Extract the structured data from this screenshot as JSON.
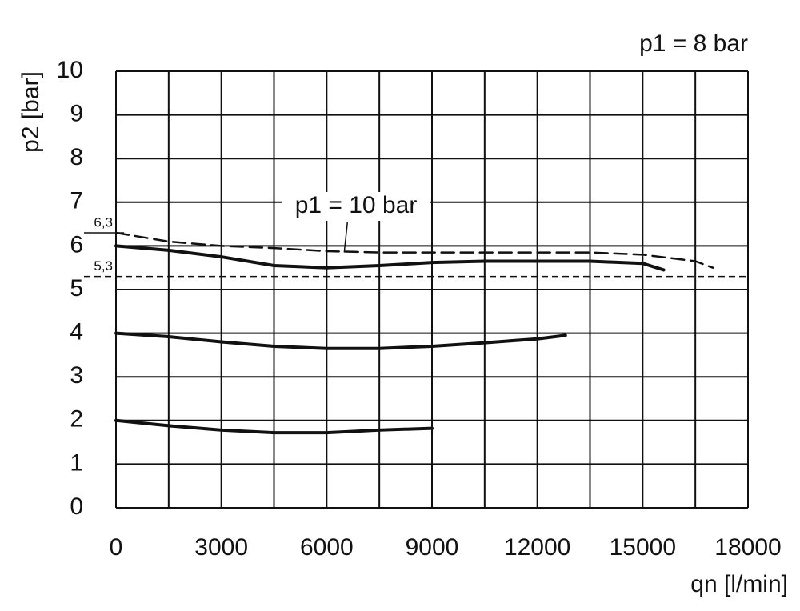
{
  "chart_data": {
    "type": "line",
    "annotation_top": "p1 = 8 bar",
    "annotation_curve": "p1 = 10 bar",
    "annotation_curve_point": [
      6500,
      5.85
    ],
    "xlabel": "qn [l/min]",
    "ylabel": "p2 [bar]",
    "xlim": [
      0,
      18000
    ],
    "ylim": [
      0,
      10
    ],
    "xticks": [
      0,
      3000,
      6000,
      9000,
      12000,
      15000,
      18000
    ],
    "x_grid_lines": [
      0,
      1500,
      3000,
      4500,
      6000,
      7500,
      9000,
      10500,
      12000,
      13500,
      15000,
      16500,
      18000
    ],
    "yticks": [
      0,
      1,
      2,
      3,
      4,
      5,
      6,
      7,
      8,
      9,
      10
    ],
    "grid": true,
    "reference_lines": [
      {
        "value": 5.3,
        "label": "5,3"
      },
      {
        "value": 6.3,
        "label": "6,3"
      }
    ],
    "series": [
      {
        "color": "#111111",
        "dashed": false,
        "x": [
          0,
          1500,
          3000,
          4500,
          6000,
          7500,
          9000,
          10500,
          12000,
          13500,
          15000,
          15600
        ],
        "values": [
          6.0,
          5.9,
          5.75,
          5.55,
          5.5,
          5.55,
          5.62,
          5.65,
          5.65,
          5.65,
          5.6,
          5.45
        ]
      },
      {
        "color": "#111111",
        "dashed": true,
        "x": [
          0,
          1500,
          3000,
          4500,
          6000,
          7500,
          9000,
          10500,
          12000,
          13500,
          15000,
          16500,
          17000
        ],
        "values": [
          6.3,
          6.1,
          6.0,
          5.95,
          5.88,
          5.85,
          5.85,
          5.85,
          5.85,
          5.85,
          5.8,
          5.65,
          5.5
        ]
      },
      {
        "color": "#111111",
        "dashed": false,
        "x": [
          0,
          1500,
          3000,
          4500,
          6000,
          7500,
          9000,
          10500,
          12000,
          12800
        ],
        "values": [
          4.0,
          3.92,
          3.8,
          3.7,
          3.65,
          3.65,
          3.7,
          3.78,
          3.87,
          3.95
        ]
      },
      {
        "color": "#111111",
        "dashed": false,
        "x": [
          0,
          1500,
          3000,
          4500,
          6000,
          7500,
          9000
        ],
        "values": [
          2.0,
          1.88,
          1.78,
          1.72,
          1.72,
          1.78,
          1.82
        ]
      }
    ]
  }
}
